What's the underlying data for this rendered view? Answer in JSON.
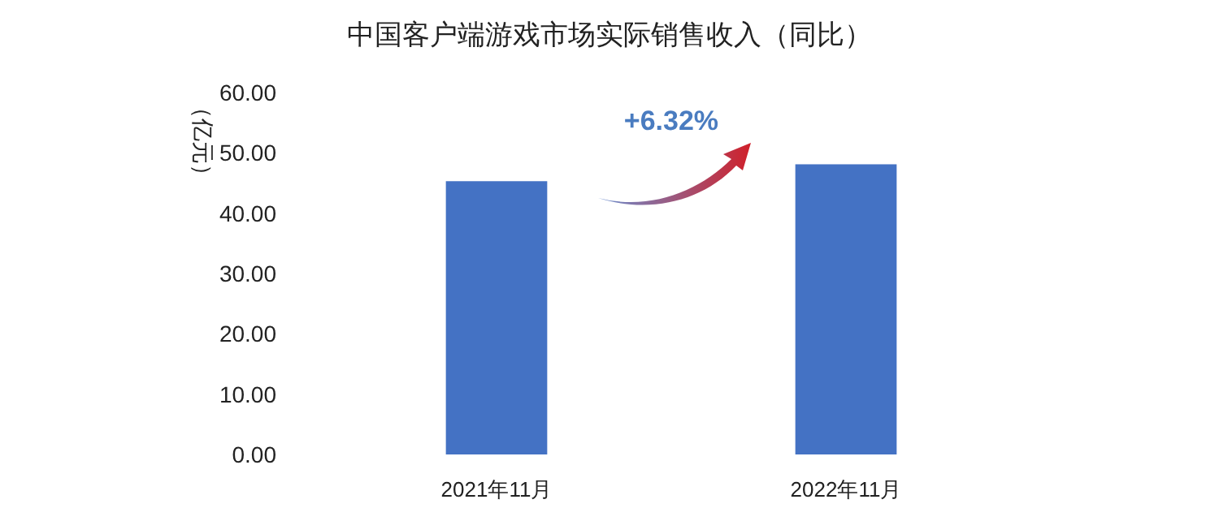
{
  "chart_data": {
    "type": "bar",
    "title": "中国客户端游戏市场实际销售收入（同比）",
    "ylabel": "（亿元）",
    "categories": [
      "2021年11月",
      "2022年11月"
    ],
    "values": [
      45.3,
      48.1
    ],
    "color": "#4472c4",
    "ylim": [
      0,
      60
    ],
    "yticks": [
      {
        "value": 0,
        "label": "0.00"
      },
      {
        "value": 10,
        "label": "10.00"
      },
      {
        "value": 20,
        "label": "20.00"
      },
      {
        "value": 30,
        "label": "30.00"
      },
      {
        "value": 40,
        "label": "40.00"
      },
      {
        "value": 50,
        "label": "50.00"
      },
      {
        "value": 60,
        "label": "60.00"
      }
    ],
    "grid": false,
    "annotations": [
      "+6.32%"
    ]
  }
}
